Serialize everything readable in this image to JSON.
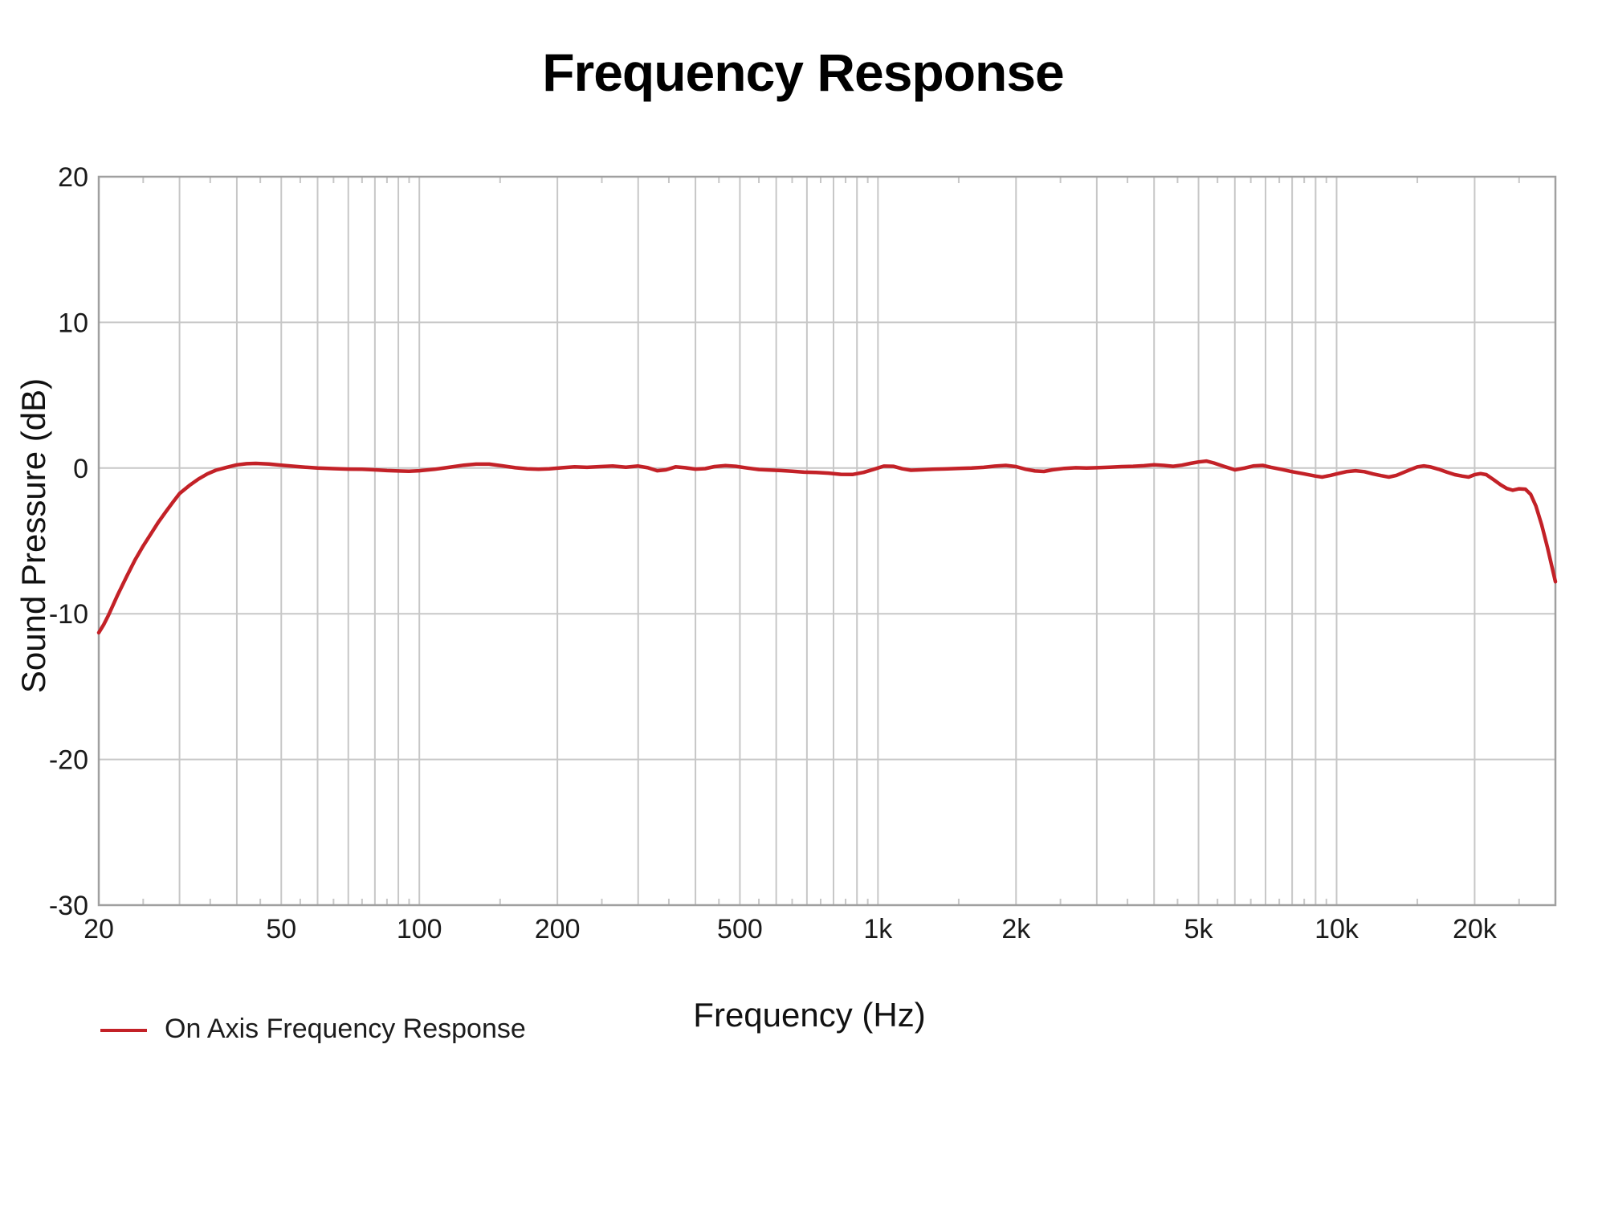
{
  "page": {
    "background": "#ffffff"
  },
  "colors": {
    "curve": "#c32127",
    "gridline": "#c7c7c7",
    "frame": "#a0a0a0",
    "tick_text": "#1a1a1a",
    "title_text": "#000000"
  },
  "chart_data": {
    "type": "line",
    "title": "Frequency Response",
    "xlabel": "Frequency (Hz)",
    "ylabel": "Sound Pressure (dB)",
    "x_scale": "log",
    "xlim": [
      20,
      30000
    ],
    "ylim": [
      -30,
      20
    ],
    "grid": true,
    "legend_position": "bottom-left",
    "x_major_ticks": [
      {
        "value": 20,
        "label": "20"
      },
      {
        "value": 50,
        "label": "50"
      },
      {
        "value": 100,
        "label": "100"
      },
      {
        "value": 200,
        "label": "200"
      },
      {
        "value": 500,
        "label": "500"
      },
      {
        "value": 1000,
        "label": "1k"
      },
      {
        "value": 2000,
        "label": "2k"
      },
      {
        "value": 5000,
        "label": "5k"
      },
      {
        "value": 10000,
        "label": "10k"
      },
      {
        "value": 20000,
        "label": "20k"
      }
    ],
    "x_gridlines": [
      30,
      40,
      50,
      60,
      70,
      80,
      90,
      100,
      200,
      300,
      400,
      500,
      600,
      700,
      800,
      900,
      1000,
      2000,
      3000,
      4000,
      5000,
      6000,
      7000,
      8000,
      9000,
      10000,
      20000
    ],
    "x_minor_ticks": [
      25,
      35,
      45,
      55,
      65,
      75,
      85,
      95,
      150,
      250,
      350,
      450,
      550,
      650,
      750,
      850,
      950,
      1500,
      2500,
      3500,
      4500,
      5500,
      6500,
      7500,
      8500,
      9500,
      15000,
      25000
    ],
    "y_ticks": [
      {
        "value": 20,
        "label": "20"
      },
      {
        "value": 10,
        "label": "10"
      },
      {
        "value": 0,
        "label": "0"
      },
      {
        "value": -10,
        "label": "-10"
      },
      {
        "value": -20,
        "label": "-20"
      },
      {
        "value": -30,
        "label": "-30"
      }
    ],
    "series": [
      {
        "name": "On Axis Frequency Response",
        "color": "#c32127",
        "points": [
          [
            20,
            -11.3
          ],
          [
            20.5,
            -10.75
          ],
          [
            21,
            -10.1
          ],
          [
            22,
            -8.7
          ],
          [
            23,
            -7.45
          ],
          [
            24,
            -6.3
          ],
          [
            25,
            -5.35
          ],
          [
            26,
            -4.5
          ],
          [
            27,
            -3.7
          ],
          [
            28,
            -3.0
          ],
          [
            29,
            -2.35
          ],
          [
            30,
            -1.75
          ],
          [
            31.5,
            -1.2
          ],
          [
            33,
            -0.75
          ],
          [
            34.5,
            -0.4
          ],
          [
            36,
            -0.15
          ],
          [
            38,
            0.05
          ],
          [
            40,
            0.22
          ],
          [
            42,
            0.3
          ],
          [
            44,
            0.32
          ],
          [
            47,
            0.28
          ],
          [
            50,
            0.2
          ],
          [
            55,
            0.08
          ],
          [
            60,
            0.0
          ],
          [
            65,
            -0.04
          ],
          [
            70,
            -0.07
          ],
          [
            75,
            -0.08
          ],
          [
            80,
            -0.12
          ],
          [
            85,
            -0.17
          ],
          [
            90,
            -0.2
          ],
          [
            95,
            -0.22
          ],
          [
            100,
            -0.18
          ],
          [
            108,
            -0.08
          ],
          [
            116,
            0.05
          ],
          [
            125,
            0.2
          ],
          [
            133,
            0.27
          ],
          [
            142,
            0.27
          ],
          [
            152,
            0.15
          ],
          [
            162,
            0.02
          ],
          [
            172,
            -0.05
          ],
          [
            182,
            -0.08
          ],
          [
            192,
            -0.05
          ],
          [
            205,
            0.02
          ],
          [
            218,
            0.08
          ],
          [
            232,
            0.05
          ],
          [
            248,
            0.1
          ],
          [
            264,
            0.14
          ],
          [
            282,
            0.06
          ],
          [
            300,
            0.14
          ],
          [
            315,
            0.02
          ],
          [
            330,
            -0.18
          ],
          [
            345,
            -0.12
          ],
          [
            362,
            0.08
          ],
          [
            380,
            0.02
          ],
          [
            400,
            -0.07
          ],
          [
            420,
            -0.04
          ],
          [
            440,
            0.1
          ],
          [
            465,
            0.17
          ],
          [
            490,
            0.12
          ],
          [
            520,
            0.0
          ],
          [
            550,
            -0.1
          ],
          [
            580,
            -0.14
          ],
          [
            615,
            -0.17
          ],
          [
            650,
            -0.22
          ],
          [
            690,
            -0.28
          ],
          [
            730,
            -0.3
          ],
          [
            780,
            -0.35
          ],
          [
            830,
            -0.43
          ],
          [
            880,
            -0.44
          ],
          [
            930,
            -0.3
          ],
          [
            980,
            -0.08
          ],
          [
            1030,
            0.13
          ],
          [
            1080,
            0.12
          ],
          [
            1130,
            -0.05
          ],
          [
            1180,
            -0.15
          ],
          [
            1240,
            -0.12
          ],
          [
            1320,
            -0.08
          ],
          [
            1400,
            -0.06
          ],
          [
            1500,
            -0.03
          ],
          [
            1600,
            0.0
          ],
          [
            1700,
            0.05
          ],
          [
            1800,
            0.13
          ],
          [
            1900,
            0.18
          ],
          [
            2000,
            0.1
          ],
          [
            2100,
            -0.08
          ],
          [
            2200,
            -0.2
          ],
          [
            2300,
            -0.23
          ],
          [
            2400,
            -0.12
          ],
          [
            2550,
            -0.02
          ],
          [
            2700,
            0.02
          ],
          [
            2850,
            0.0
          ],
          [
            3000,
            0.02
          ],
          [
            3200,
            0.06
          ],
          [
            3400,
            0.1
          ],
          [
            3600,
            0.12
          ],
          [
            3800,
            0.16
          ],
          [
            4000,
            0.22
          ],
          [
            4200,
            0.18
          ],
          [
            4400,
            0.12
          ],
          [
            4600,
            0.2
          ],
          [
            4800,
            0.32
          ],
          [
            5000,
            0.42
          ],
          [
            5200,
            0.48
          ],
          [
            5400,
            0.35
          ],
          [
            5700,
            0.1
          ],
          [
            6000,
            -0.12
          ],
          [
            6300,
            0.0
          ],
          [
            6600,
            0.15
          ],
          [
            6900,
            0.18
          ],
          [
            7200,
            0.05
          ],
          [
            7600,
            -0.1
          ],
          [
            8000,
            -0.25
          ],
          [
            8500,
            -0.4
          ],
          [
            9000,
            -0.55
          ],
          [
            9300,
            -0.62
          ],
          [
            9700,
            -0.5
          ],
          [
            10000,
            -0.4
          ],
          [
            10500,
            -0.25
          ],
          [
            11000,
            -0.18
          ],
          [
            11500,
            -0.25
          ],
          [
            12000,
            -0.4
          ],
          [
            12500,
            -0.52
          ],
          [
            13000,
            -0.62
          ],
          [
            13500,
            -0.5
          ],
          [
            14000,
            -0.3
          ],
          [
            14500,
            -0.1
          ],
          [
            15000,
            0.08
          ],
          [
            15500,
            0.15
          ],
          [
            16000,
            0.08
          ],
          [
            16700,
            -0.08
          ],
          [
            17400,
            -0.28
          ],
          [
            18100,
            -0.45
          ],
          [
            18800,
            -0.55
          ],
          [
            19400,
            -0.62
          ],
          [
            20000,
            -0.45
          ],
          [
            20600,
            -0.38
          ],
          [
            21200,
            -0.45
          ],
          [
            22000,
            -0.8
          ],
          [
            22800,
            -1.15
          ],
          [
            23500,
            -1.4
          ],
          [
            24200,
            -1.52
          ],
          [
            25000,
            -1.42
          ],
          [
            25800,
            -1.45
          ],
          [
            26500,
            -1.8
          ],
          [
            27200,
            -2.6
          ],
          [
            28000,
            -3.9
          ],
          [
            28800,
            -5.4
          ],
          [
            29500,
            -6.8
          ],
          [
            30000,
            -7.8
          ]
        ]
      }
    ]
  }
}
